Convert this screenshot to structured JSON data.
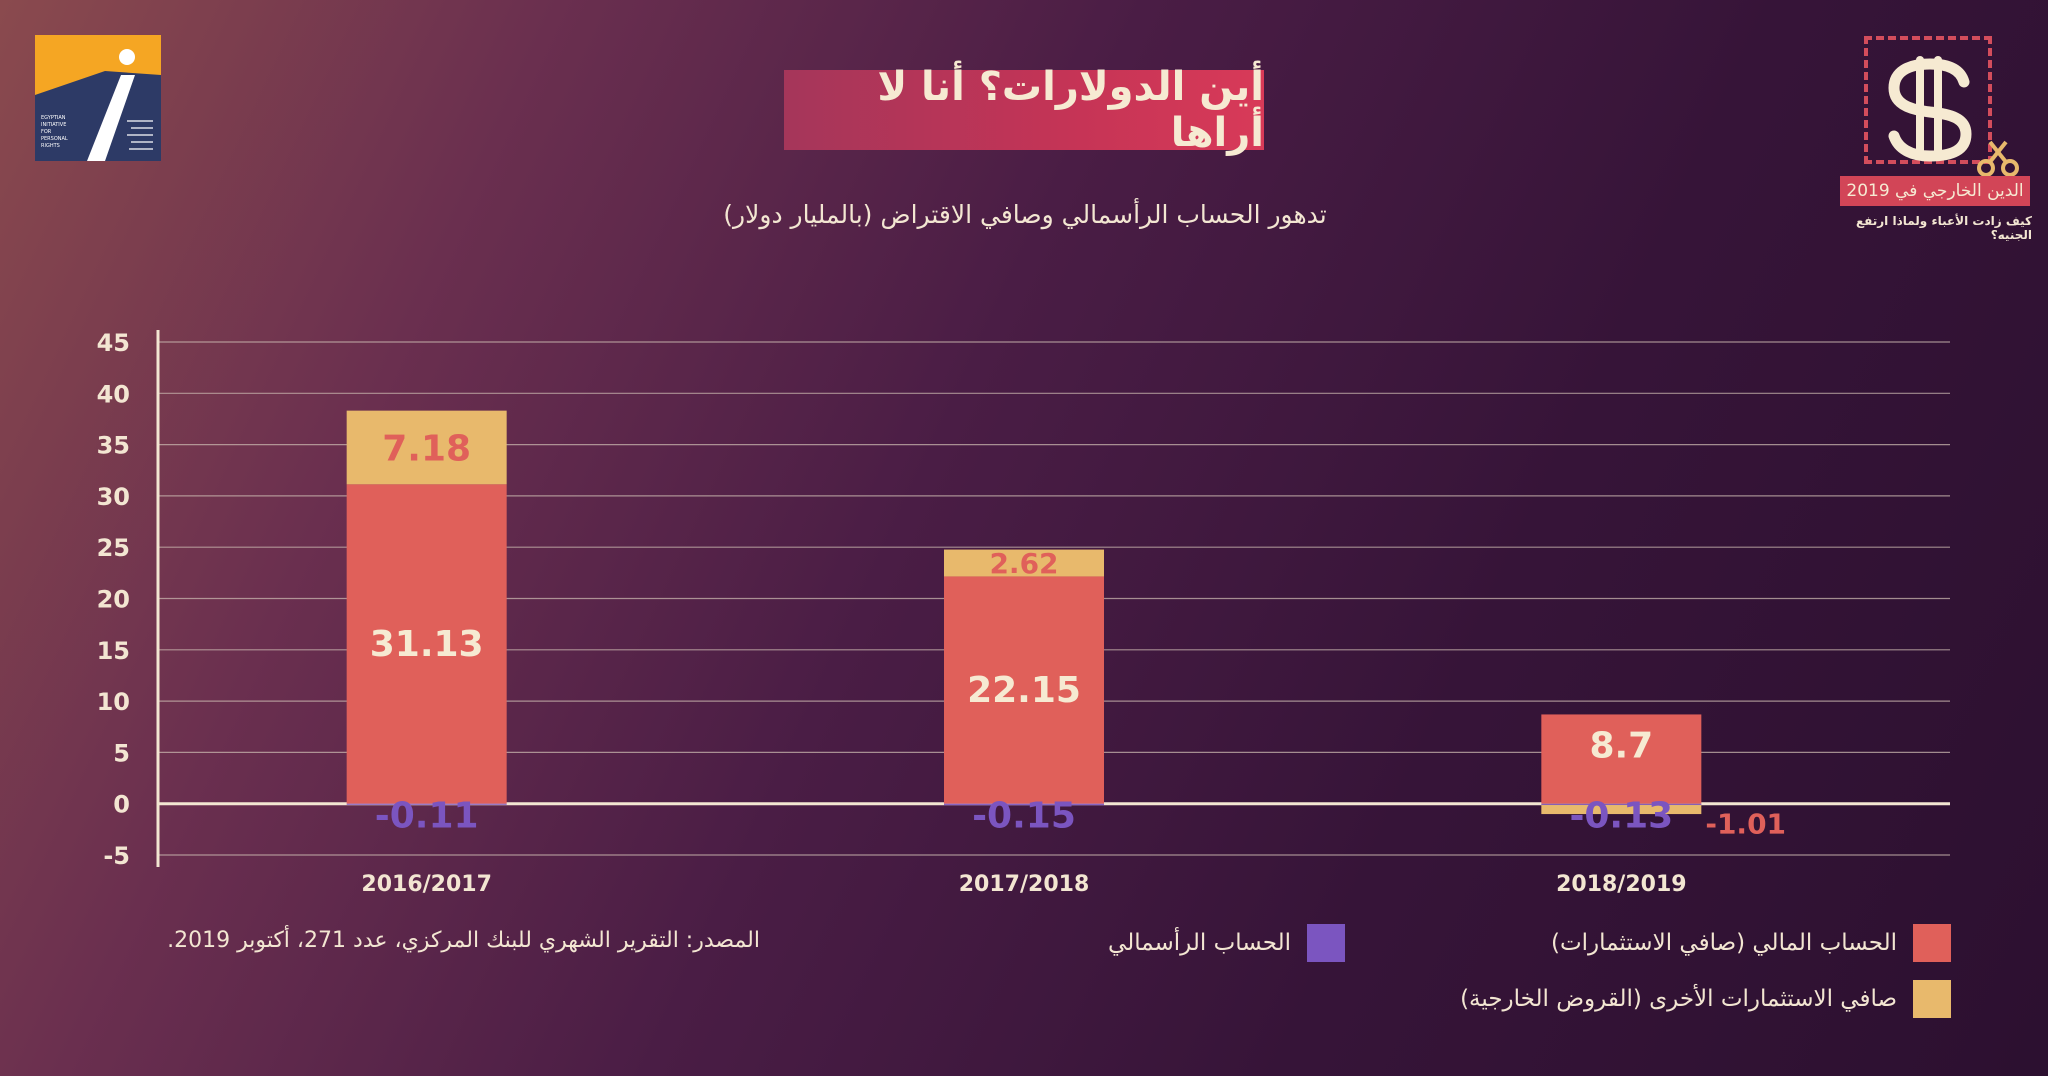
{
  "title": "أين الدولارات؟ أنا لا أراها",
  "subtitle": "تدهور الحساب الرأسمالي وصافي الاقتراض (بالمليار دولار)",
  "logo": {
    "text_lines": [
      "EGYPTIAN",
      "INITIATIVE",
      "FOR",
      "PERSONAL",
      "RIGHTS"
    ],
    "colors": [
      "#f5a623",
      "#2d3a66"
    ]
  },
  "badge": {
    "label": "الدين الخارجي في 2019",
    "caption": "كيف زادت الأعباء ولماذا ارتفع الجنيه؟",
    "icon": "dollar-scissors-icon"
  },
  "source": "المصدر: التقرير الشهري للبنك المركزي، عدد 271، أكتوبر 2019.",
  "legend": [
    {
      "label": "الحساب المالي (صافي الاستثمارات)",
      "color": "#e0605a"
    },
    {
      "label": "صافي الاستثمارات الأخرى (القروض الخارجية)",
      "color": "#e8b96c"
    },
    {
      "label": "الحساب الرأسمالي",
      "color": "#7b55c0"
    }
  ],
  "chart_data": {
    "type": "bar",
    "stacked": true,
    "categories": [
      "2016/2017",
      "2017/2018",
      "2018/2019"
    ],
    "series": [
      {
        "name": "الحساب المالي (صافي الاستثمارات)",
        "color": "#e0605a",
        "values": [
          31.13,
          22.15,
          8.7
        ],
        "labels": [
          "31.13",
          "22.15",
          "8.7"
        ]
      },
      {
        "name": "صافي الاستثمارات الأخرى (القروض الخارجية)",
        "color": "#e8b96c",
        "values": [
          7.18,
          2.62,
          -1.01
        ],
        "labels": [
          "7.18",
          "2.62",
          "-1.01"
        ]
      },
      {
        "name": "الحساب الرأسمالي",
        "color": "#7b55c0",
        "values": [
          -0.11,
          -0.15,
          -0.13
        ],
        "labels": [
          "-0.11",
          "-0.15",
          "-0.13"
        ]
      }
    ],
    "yticks": [
      45,
      40,
      35,
      30,
      25,
      20,
      15,
      10,
      5,
      0,
      -5
    ],
    "ylim": [
      -5,
      45
    ],
    "grid": true,
    "legend_position": "bottom"
  }
}
